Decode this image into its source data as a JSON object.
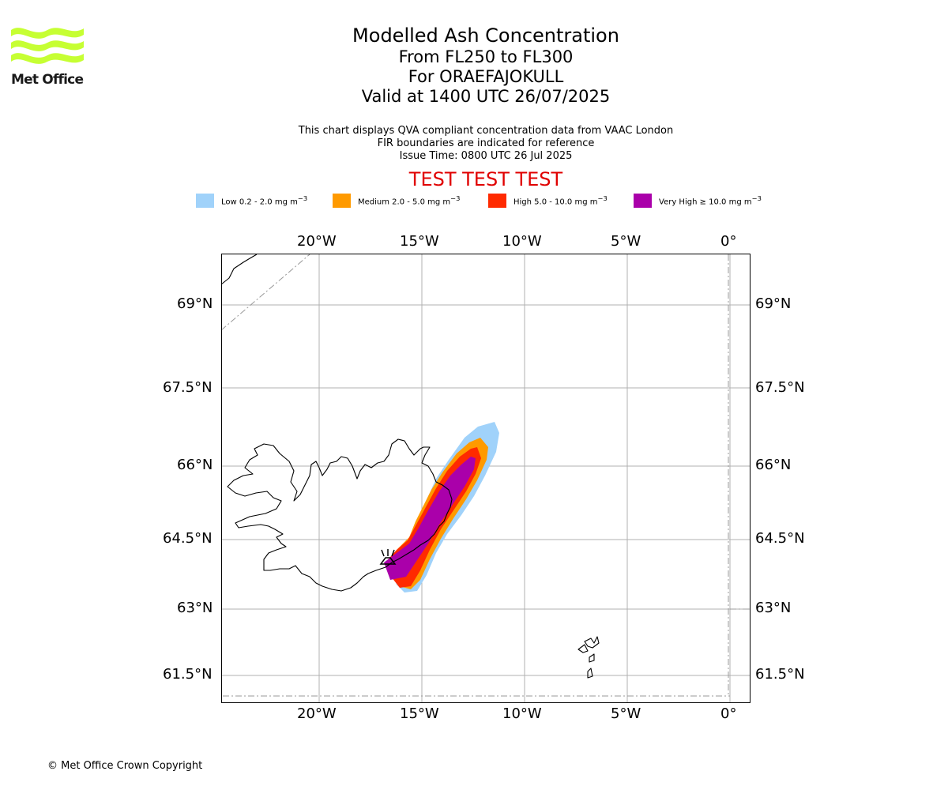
{
  "logo": {
    "text": "Met Office",
    "color": "#c6ff33"
  },
  "header": {
    "title": "Modelled Ash Concentration",
    "levels": "From FL250 to FL300",
    "volcano": "For ORAEFAJOKULL",
    "valid": "Valid at 1400 UTC 26/07/2025",
    "note1": "This chart displays QVA compliant concentration data from VAAC London",
    "note2": "FIR boundaries are indicated for reference",
    "issue": "Issue Time: 0800 UTC 26 Jul 2025",
    "test_banner": "TEST TEST TEST",
    "test_color": "#e00000"
  },
  "legend": [
    {
      "prefix": "Low 0.2 - 2.0 mg m",
      "sup": "−3",
      "color": "#a0d2fa"
    },
    {
      "prefix": "Medium 2.0 - 5.0 mg m",
      "sup": "−3",
      "color": "#ff9a00"
    },
    {
      "prefix": "High 5.0 - 10.0 mg m",
      "sup": "−3",
      "color": "#ff2a00"
    },
    {
      "prefix": "Very High ≥ 10.0 mg m",
      "sup": "−3",
      "color": "#aa00aa"
    }
  ],
  "map": {
    "lon_ticks": [
      "20°W",
      "15°W",
      "10°W",
      "5°W",
      "0°"
    ],
    "lat_ticks": [
      "69°N",
      "67.5°N",
      "66°N",
      "64.5°N",
      "63°N",
      "61.5°N"
    ],
    "grid": true
  },
  "footer": {
    "copyright": "© Met Office Crown Copyright"
  }
}
